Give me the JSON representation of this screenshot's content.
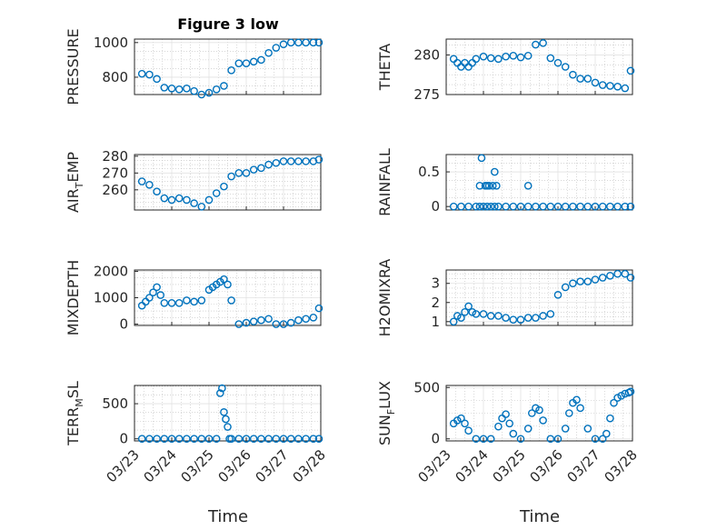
{
  "figure": {
    "title": "Figure 3 low",
    "marker_color": "#0072BD",
    "axis_color": "#262626"
  },
  "chart_data": [
    {
      "type": "scatter",
      "ylabel": "PRESSURE",
      "ylim": [
        700,
        1020
      ],
      "yticks": [
        800,
        1000
      ],
      "xlim": [
        0,
        5
      ],
      "xticks": [
        "03/23",
        "03/24",
        "03/25",
        "03/26",
        "03/27",
        "03/28"
      ],
      "show_xtick_labels": false,
      "grid": true,
      "series": [
        {
          "x": [
            0.2,
            0.4,
            0.6,
            0.8,
            1.0,
            1.2,
            1.4,
            1.6,
            1.8,
            2.0,
            2.2,
            2.4,
            2.6,
            2.8,
            3.0,
            3.2,
            3.4,
            3.6,
            3.8,
            4.0,
            4.2,
            4.4,
            4.6,
            4.8,
            4.95
          ],
          "y": [
            820,
            815,
            790,
            740,
            735,
            730,
            735,
            720,
            700,
            710,
            730,
            750,
            840,
            880,
            880,
            890,
            900,
            940,
            970,
            990,
            1000,
            1000,
            1000,
            1000,
            1000
          ]
        }
      ]
    },
    {
      "type": "scatter",
      "ylabel": "THETA",
      "ylim": [
        275,
        282
      ],
      "yticks": [
        275,
        280
      ],
      "xlim": [
        0,
        5
      ],
      "xticks": [
        "03/23",
        "03/24",
        "03/25",
        "03/26",
        "03/27",
        "03/28"
      ],
      "show_xtick_labels": false,
      "grid": true,
      "series": [
        {
          "x": [
            0.2,
            0.3,
            0.4,
            0.5,
            0.6,
            0.7,
            0.8,
            1.0,
            1.2,
            1.4,
            1.6,
            1.8,
            2.0,
            2.2,
            2.4,
            2.6,
            2.8,
            3.0,
            3.2,
            3.4,
            3.6,
            3.8,
            4.0,
            4.2,
            4.4,
            4.6,
            4.8,
            4.95
          ],
          "y": [
            279.5,
            279,
            278.5,
            279,
            278.5,
            279,
            279.5,
            279.8,
            279.6,
            279.5,
            279.8,
            279.9,
            279.7,
            279.9,
            281.3,
            281.5,
            279.6,
            279,
            278.5,
            277.5,
            277,
            277,
            276.5,
            276.2,
            276.1,
            276,
            275.8,
            278
          ]
        }
      ]
    },
    {
      "type": "scatter",
      "ylabel": "AIR_TEMP",
      "ylim": [
        248,
        281
      ],
      "yticks": [
        260,
        270,
        280
      ],
      "xlim": [
        0,
        5
      ],
      "xticks": [
        "03/23",
        "03/24",
        "03/25",
        "03/26",
        "03/27",
        "03/28"
      ],
      "show_xtick_labels": false,
      "grid": true,
      "series": [
        {
          "x": [
            0.2,
            0.4,
            0.6,
            0.8,
            1.0,
            1.2,
            1.4,
            1.6,
            1.8,
            2.0,
            2.2,
            2.4,
            2.6,
            2.8,
            3.0,
            3.2,
            3.4,
            3.6,
            3.8,
            4.0,
            4.2,
            4.4,
            4.6,
            4.8,
            4.95
          ],
          "y": [
            265,
            263,
            259,
            255,
            254,
            255,
            254,
            252,
            250,
            254,
            258,
            262,
            268,
            270,
            270,
            272,
            273,
            275,
            276,
            277,
            277,
            277,
            277,
            277,
            278
          ]
        }
      ]
    },
    {
      "type": "scatter",
      "ylabel": "RAINFALL",
      "ylim": [
        -0.05,
        0.75
      ],
      "yticks": [
        0,
        0.5
      ],
      "xlim": [
        0,
        5
      ],
      "xticks": [
        "03/23",
        "03/24",
        "03/25",
        "03/26",
        "03/27",
        "03/28"
      ],
      "show_xtick_labels": false,
      "grid": true,
      "series": [
        {
          "x": [
            0.2,
            0.4,
            0.6,
            0.8,
            0.9,
            1.0,
            1.1,
            1.2,
            1.3,
            1.4,
            1.6,
            1.8,
            2.0,
            2.2,
            2.4,
            2.6,
            2.8,
            3.0,
            3.2,
            3.4,
            3.6,
            3.8,
            4.0,
            4.2,
            4.4,
            4.6,
            4.8,
            4.95,
            0.9,
            0.95,
            1.05,
            1.1,
            1.15,
            1.25,
            1.3,
            1.35,
            2.2
          ],
          "y": [
            0,
            0,
            0,
            0,
            0,
            0,
            0,
            0,
            0,
            0,
            0,
            0,
            0,
            0,
            0,
            0,
            0,
            0,
            0,
            0,
            0,
            0,
            0,
            0,
            0,
            0,
            0,
            0,
            0.3,
            0.7,
            0.3,
            0.3,
            0.3,
            0.3,
            0.5,
            0.3,
            0.3
          ]
        }
      ]
    },
    {
      "type": "scatter",
      "ylabel": "MIXDEPTH",
      "ylim": [
        -50,
        2050
      ],
      "yticks": [
        0,
        1000,
        2000
      ],
      "xlim": [
        0,
        5
      ],
      "xticks": [
        "03/23",
        "03/24",
        "03/25",
        "03/26",
        "03/27",
        "03/28"
      ],
      "show_xtick_labels": false,
      "grid": true,
      "series": [
        {
          "x": [
            0.2,
            0.3,
            0.4,
            0.5,
            0.6,
            0.7,
            0.8,
            1.0,
            1.2,
            1.4,
            1.6,
            1.8,
            2.0,
            2.1,
            2.2,
            2.3,
            2.4,
            2.5,
            2.6,
            2.8,
            3.0,
            3.2,
            3.4,
            3.6,
            3.8,
            4.0,
            4.2,
            4.4,
            4.6,
            4.8,
            4.95
          ],
          "y": [
            700,
            850,
            1000,
            1200,
            1400,
            1100,
            800,
            800,
            800,
            900,
            850,
            900,
            1300,
            1400,
            1500,
            1600,
            1700,
            1500,
            900,
            0,
            50,
            100,
            150,
            200,
            0,
            0,
            50,
            150,
            200,
            250,
            600
          ]
        }
      ]
    },
    {
      "type": "scatter",
      "ylabel": "H2OMIXRA",
      "ylim": [
        0.8,
        3.7
      ],
      "yticks": [
        1,
        2,
        3
      ],
      "xlim": [
        0,
        5
      ],
      "xticks": [
        "03/23",
        "03/24",
        "03/25",
        "03/26",
        "03/27",
        "03/28"
      ],
      "show_xtick_labels": false,
      "grid": true,
      "series": [
        {
          "x": [
            0.2,
            0.3,
            0.4,
            0.5,
            0.6,
            0.7,
            0.8,
            1.0,
            1.2,
            1.4,
            1.6,
            1.8,
            2.0,
            2.2,
            2.4,
            2.6,
            2.8,
            3.0,
            3.2,
            3.4,
            3.6,
            3.8,
            4.0,
            4.2,
            4.4,
            4.6,
            4.8,
            4.95
          ],
          "y": [
            1,
            1.3,
            1.2,
            1.5,
            1.8,
            1.5,
            1.4,
            1.4,
            1.3,
            1.3,
            1.2,
            1.1,
            1.1,
            1.2,
            1.2,
            1.3,
            1.4,
            2.4,
            2.8,
            3,
            3.1,
            3.1,
            3.2,
            3.3,
            3.4,
            3.5,
            3.5,
            3.3
          ]
        }
      ]
    },
    {
      "type": "scatter",
      "ylabel": "TERR_MSL",
      "ylim": [
        -30,
        760
      ],
      "yticks": [
        0,
        500
      ],
      "xlim": [
        0,
        5
      ],
      "xticks": [
        "03/23",
        "03/24",
        "03/25",
        "03/26",
        "03/27",
        "03/28"
      ],
      "show_xtick_labels": true,
      "grid": true,
      "series": [
        {
          "x": [
            0.2,
            0.4,
            0.6,
            0.8,
            1.0,
            1.2,
            1.4,
            1.6,
            1.8,
            2.0,
            2.2,
            2.3,
            2.35,
            2.4,
            2.45,
            2.5,
            2.55,
            2.6,
            2.8,
            3.0,
            3.2,
            3.4,
            3.6,
            3.8,
            4.0,
            4.2,
            4.4,
            4.6,
            4.8,
            4.95
          ],
          "y": [
            0,
            0,
            0,
            0,
            0,
            0,
            0,
            0,
            0,
            0,
            0,
            650,
            720,
            380,
            280,
            170,
            0,
            0,
            0,
            0,
            0,
            0,
            0,
            0,
            0,
            0,
            0,
            0,
            0,
            0
          ]
        }
      ]
    },
    {
      "type": "scatter",
      "ylabel": "SUN_FLUX",
      "ylim": [
        -20,
        520
      ],
      "yticks": [
        0,
        500
      ],
      "xlim": [
        0,
        5
      ],
      "xticks": [
        "03/23",
        "03/24",
        "03/25",
        "03/26",
        "03/27",
        "03/28"
      ],
      "show_xtick_labels": true,
      "grid": true,
      "series": [
        {
          "x": [
            0.2,
            0.3,
            0.4,
            0.5,
            0.6,
            0.8,
            1.0,
            1.2,
            1.4,
            1.5,
            1.6,
            1.7,
            1.8,
            2.0,
            2.2,
            2.3,
            2.4,
            2.5,
            2.6,
            2.8,
            3.0,
            3.2,
            3.3,
            3.4,
            3.5,
            3.6,
            3.8,
            4.0,
            4.2,
            4.3,
            4.4,
            4.5,
            4.6,
            4.7,
            4.8,
            4.9,
            4.95
          ],
          "y": [
            150,
            180,
            200,
            150,
            80,
            0,
            0,
            0,
            120,
            200,
            240,
            150,
            50,
            0,
            100,
            250,
            300,
            280,
            180,
            0,
            0,
            100,
            250,
            350,
            380,
            300,
            100,
            0,
            0,
            50,
            200,
            350,
            400,
            420,
            440,
            450,
            460
          ]
        }
      ]
    }
  ],
  "xlabel_left": "Time",
  "xlabel_right": "Time"
}
